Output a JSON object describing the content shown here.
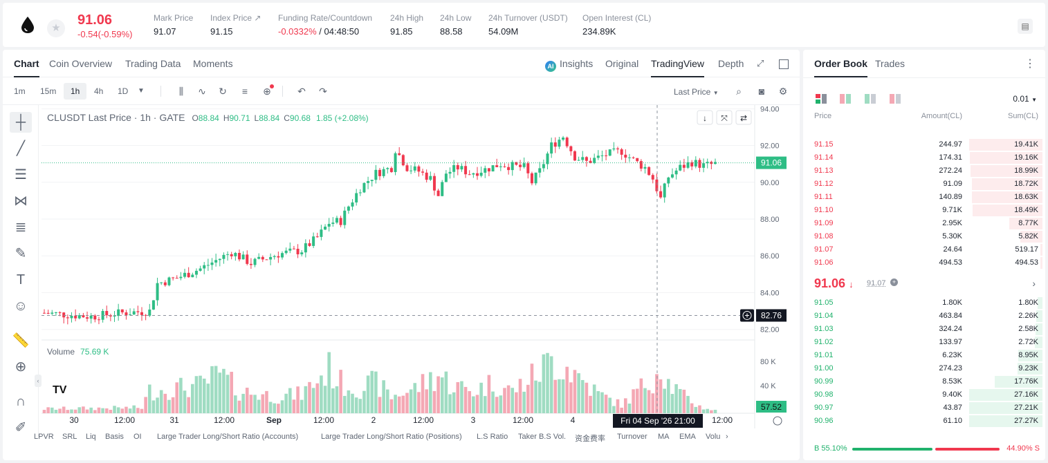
{
  "header": {
    "price": "91.06",
    "change": "-0.54(-0.59%)",
    "stats": [
      {
        "label": "Mark Price",
        "value": "91.07"
      },
      {
        "label": "Index Price ↗",
        "value": "91.15"
      },
      {
        "label": "Funding Rate/Countdown",
        "value_neg": "-0.0332%",
        "value": " / 04:48:50"
      },
      {
        "label": "24h High",
        "value": "91.85"
      },
      {
        "label": "24h Low",
        "value": "88.58"
      },
      {
        "label": "24h Turnover (USDT)",
        "value": "54.09M"
      },
      {
        "label": "Open Interest (CL)",
        "value": "234.89K"
      }
    ]
  },
  "chart_tabs": [
    "Chart",
    "Coin Overview",
    "Trading Data",
    "Moments"
  ],
  "chart_right_tabs": {
    "insights": "Insights",
    "ai": "AI",
    "original": "Original",
    "tradingview": "TradingView",
    "depth": "Depth"
  },
  "timeframes": [
    "1m",
    "15m",
    "1h",
    "4h",
    "1D"
  ],
  "last_price_select": "Last Price",
  "legend": {
    "symbol": "CLUSDT Last Price · 1h · GATE",
    "o": "88.84",
    "h": "90.71",
    "l": "88.84",
    "c": "90.68",
    "chg": "1.85 (+2.08%)"
  },
  "volume_label": "Volume",
  "volume_value": "75.69 K",
  "price_tag": "91.06",
  "cross_price": "82.76",
  "volume_tag": "57.52",
  "cross_time": "Fri 04 Sep '26   21:00",
  "colors": {
    "up": "#2ebd85",
    "down": "#f0384e",
    "up_vol": "#9fdcc2",
    "down_vol": "#f4a8b4"
  },
  "chart_data": {
    "type": "candlestick",
    "interval": "1h",
    "ylim": [
      81.5,
      94.2
    ],
    "y_ticks": [
      "94.00",
      "92.00",
      "90.00",
      "88.00",
      "86.00",
      "84.00",
      "82.00"
    ],
    "vol_ticks": [
      "80 K",
      "40 K"
    ],
    "x_ticks": [
      "30",
      "12:00",
      "31",
      "12:00",
      "Sep",
      "12:00",
      "2",
      "12:00",
      "3",
      "12:00",
      "4",
      "12:00"
    ],
    "waypoints": [
      [
        0,
        82.9
      ],
      [
        12,
        82.7
      ],
      [
        20,
        82.9
      ],
      [
        27,
        83.0
      ],
      [
        29,
        84.5
      ],
      [
        34,
        84.8
      ],
      [
        40,
        85.3
      ],
      [
        48,
        86.2
      ],
      [
        53,
        85.6
      ],
      [
        60,
        86.1
      ],
      [
        66,
        86.3
      ],
      [
        70,
        87.0
      ],
      [
        73,
        87.8
      ],
      [
        76,
        87.9
      ],
      [
        78,
        88.7
      ],
      [
        81,
        89.7
      ],
      [
        85,
        90.5
      ],
      [
        89,
        90.8
      ],
      [
        90,
        91.8
      ],
      [
        93,
        90.8
      ],
      [
        96,
        90.6
      ],
      [
        99,
        90.2
      ],
      [
        101,
        89.3
      ],
      [
        103,
        90.5
      ],
      [
        106,
        90.8
      ],
      [
        109,
        90.5
      ],
      [
        113,
        90.7
      ],
      [
        117,
        91.0
      ],
      [
        119,
        90.9
      ],
      [
        123,
        90.8
      ],
      [
        125,
        90.0
      ],
      [
        127,
        90.6
      ],
      [
        130,
        92.0
      ],
      [
        133,
        92.5
      ],
      [
        136,
        91.4
      ],
      [
        139,
        91.1
      ],
      [
        144,
        91.5
      ],
      [
        148,
        91.7
      ],
      [
        151,
        91.2
      ],
      [
        154,
        90.8
      ],
      [
        156,
        90.2
      ],
      [
        158,
        89.1
      ],
      [
        160,
        90.3
      ],
      [
        163,
        90.8
      ],
      [
        166,
        91.1
      ],
      [
        169,
        90.9
      ],
      [
        172,
        91.0
      ]
    ],
    "volume_profile": [
      [
        0,
        8
      ],
      [
        25,
        10
      ],
      [
        27,
        40
      ],
      [
        40,
        50
      ],
      [
        45,
        70
      ],
      [
        50,
        40
      ],
      [
        60,
        30
      ],
      [
        66,
        35
      ],
      [
        70,
        60
      ],
      [
        73,
        80
      ],
      [
        76,
        55
      ],
      [
        80,
        45
      ],
      [
        85,
        55
      ],
      [
        89,
        30
      ],
      [
        95,
        45
      ],
      [
        101,
        70
      ],
      [
        105,
        50
      ],
      [
        110,
        40
      ],
      [
        115,
        55
      ],
      [
        120,
        40
      ],
      [
        125,
        65
      ],
      [
        130,
        95
      ],
      [
        134,
        85
      ],
      [
        138,
        60
      ],
      [
        142,
        35
      ],
      [
        145,
        25
      ],
      [
        148,
        15
      ],
      [
        152,
        40
      ],
      [
        156,
        65
      ],
      [
        158,
        90
      ],
      [
        160,
        55
      ],
      [
        164,
        30
      ],
      [
        168,
        12
      ],
      [
        172,
        5
      ]
    ]
  },
  "bottom_items": [
    "LPVR",
    "SRL",
    "Liq",
    "Basis",
    "OI",
    "Large Trader Long/Short Ratio (Accounts)",
    "Large Trader Long/Short Ratio (Positions)",
    "L.S Ratio",
    "Taker B.S Vol.",
    "资金费率",
    "Turnover",
    "MA",
    "EMA",
    "Volu"
  ],
  "orderbook": {
    "tabs": [
      "Order Book",
      "Trades"
    ],
    "tick": "0.01",
    "headers": [
      "Price",
      "Amount(CL)",
      "Sum(CL)"
    ],
    "asks": [
      {
        "price": "91.15",
        "amount": "244.97",
        "sum": "19.41K",
        "depth": 1.0
      },
      {
        "price": "91.14",
        "amount": "174.31",
        "sum": "19.16K",
        "depth": 0.987
      },
      {
        "price": "91.13",
        "amount": "272.24",
        "sum": "18.99K",
        "depth": 0.978
      },
      {
        "price": "91.12",
        "amount": "91.09",
        "sum": "18.72K",
        "depth": 0.964
      },
      {
        "price": "91.11",
        "amount": "140.89",
        "sum": "18.63K",
        "depth": 0.96
      },
      {
        "price": "91.10",
        "amount": "9.71K",
        "sum": "18.49K",
        "depth": 0.953
      },
      {
        "price": "91.09",
        "amount": "2.95K",
        "sum": "8.77K",
        "depth": 0.452
      },
      {
        "price": "91.08",
        "amount": "5.30K",
        "sum": "5.82K",
        "depth": 0.3
      },
      {
        "price": "91.07",
        "amount": "24.64",
        "sum": "519.17",
        "depth": 0.027
      },
      {
        "price": "91.06",
        "amount": "494.53",
        "sum": "494.53",
        "depth": 0.025
      }
    ],
    "mid_price": "91.06",
    "mark_price": "91.07",
    "bids": [
      {
        "price": "91.05",
        "amount": "1.80K",
        "sum": "1.80K",
        "depth": 0.066
      },
      {
        "price": "91.04",
        "amount": "463.84",
        "sum": "2.26K",
        "depth": 0.083
      },
      {
        "price": "91.03",
        "amount": "324.24",
        "sum": "2.58K",
        "depth": 0.095
      },
      {
        "price": "91.02",
        "amount": "133.97",
        "sum": "2.72K",
        "depth": 0.1
      },
      {
        "price": "91.01",
        "amount": "6.23K",
        "sum": "8.95K",
        "depth": 0.329
      },
      {
        "price": "91.00",
        "amount": "274.23",
        "sum": "9.23K",
        "depth": 0.339
      },
      {
        "price": "90.99",
        "amount": "8.53K",
        "sum": "17.76K",
        "depth": 0.653
      },
      {
        "price": "90.98",
        "amount": "9.40K",
        "sum": "27.16K",
        "depth": 0.998
      },
      {
        "price": "90.97",
        "amount": "43.87",
        "sum": "27.21K",
        "depth": 1.0
      },
      {
        "price": "90.96",
        "amount": "61.10",
        "sum": "27.27K",
        "depth": 1.0
      }
    ],
    "buy_ratio": "B 55.10%",
    "sell_ratio": "44.90% S"
  }
}
